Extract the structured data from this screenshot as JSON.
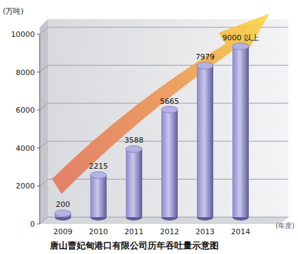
{
  "chart_data": {
    "type": "bar",
    "title": "唐山曹妃甸港口有限公司历年吞吐量示意图",
    "y_label": "(万吨)",
    "x_label": "(年度)",
    "categories": [
      "2009",
      "2010",
      "2011",
      "2012",
      "2013",
      "2014"
    ],
    "values": [
      200,
      2215,
      3588,
      5665,
      7979,
      9000
    ],
    "value_labels": [
      "200",
      "2215",
      "3588",
      "5665",
      "7979",
      "9000 以上"
    ],
    "color": "#8c89c6",
    "ylim": [
      0,
      10000
    ],
    "yticks": [
      0,
      2000,
      4000,
      6000,
      8000,
      10000
    ],
    "grid": true,
    "data_labels": true
  }
}
